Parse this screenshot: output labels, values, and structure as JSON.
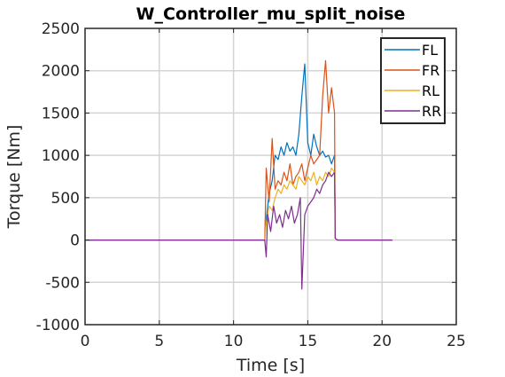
{
  "chart_data": {
    "type": "line",
    "title": "W_Controller_mu_split_noise",
    "xlabel": "Time [s]",
    "ylabel": "Torque [Nm]",
    "xlim": [
      0,
      25
    ],
    "ylim": [
      -1000,
      2500
    ],
    "xticks": [
      0,
      5,
      10,
      15,
      20,
      25
    ],
    "yticks": [
      -1000,
      -500,
      0,
      500,
      1000,
      1500,
      2000,
      2500
    ],
    "grid": true,
    "legend_position": "top-right",
    "series": [
      {
        "name": "FL",
        "color": "#0072BD",
        "x": [
          0,
          12.1,
          12.2,
          12.4,
          12.6,
          12.8,
          13.0,
          13.2,
          13.4,
          13.6,
          13.8,
          14.0,
          14.2,
          14.4,
          14.6,
          14.8,
          15.0,
          15.2,
          15.4,
          15.6,
          15.8,
          16.0,
          16.2,
          16.4,
          16.6,
          16.8,
          16.85,
          17.0,
          20.7
        ],
        "y": [
          0,
          0,
          250,
          550,
          700,
          1000,
          950,
          1100,
          1000,
          1150,
          1050,
          1100,
          1000,
          1250,
          1700,
          2080,
          1150,
          1000,
          1250,
          1100,
          1000,
          1050,
          980,
          1000,
          900,
          1000,
          20,
          0,
          0
        ]
      },
      {
        "name": "FR",
        "color": "#D95319",
        "x": [
          0,
          12.1,
          12.2,
          12.4,
          12.6,
          12.8,
          13.0,
          13.2,
          13.4,
          13.6,
          13.8,
          14.0,
          14.2,
          14.4,
          14.6,
          14.8,
          15.0,
          15.2,
          15.4,
          15.6,
          15.8,
          16.0,
          16.2,
          16.4,
          16.6,
          16.8,
          16.85,
          17.0,
          20.7
        ],
        "y": [
          0,
          0,
          850,
          450,
          1200,
          600,
          700,
          650,
          800,
          700,
          900,
          650,
          750,
          800,
          900,
          700,
          850,
          1000,
          900,
          950,
          1000,
          1700,
          2120,
          1500,
          1800,
          1500,
          20,
          0,
          0
        ]
      },
      {
        "name": "RL",
        "color": "#EDB120",
        "x": [
          0,
          12.1,
          12.2,
          12.4,
          12.6,
          12.8,
          13.0,
          13.2,
          13.4,
          13.6,
          13.8,
          14.0,
          14.2,
          14.4,
          14.6,
          14.8,
          15.0,
          15.2,
          15.4,
          15.6,
          15.8,
          16.0,
          16.2,
          16.4,
          16.6,
          16.8,
          16.85,
          17.0,
          20.7
        ],
        "y": [
          0,
          0,
          200,
          400,
          350,
          500,
          600,
          550,
          650,
          600,
          700,
          650,
          600,
          750,
          700,
          650,
          750,
          700,
          800,
          650,
          750,
          700,
          800,
          750,
          850,
          800,
          20,
          0,
          0
        ]
      },
      {
        "name": "RR",
        "color": "#7E2F8E",
        "x": [
          0,
          12.1,
          12.2,
          12.3,
          12.5,
          12.7,
          12.9,
          13.1,
          13.3,
          13.5,
          13.7,
          13.9,
          14.1,
          14.3,
          14.5,
          14.6,
          14.8,
          15.0,
          15.2,
          15.4,
          15.6,
          15.8,
          16.0,
          16.2,
          16.4,
          16.6,
          16.8,
          16.85,
          17.0,
          20.7
        ],
        "y": [
          0,
          0,
          -200,
          300,
          100,
          400,
          200,
          300,
          150,
          350,
          250,
          400,
          200,
          300,
          500,
          -580,
          300,
          400,
          450,
          500,
          600,
          550,
          650,
          700,
          800,
          750,
          800,
          20,
          0,
          0
        ]
      }
    ]
  }
}
